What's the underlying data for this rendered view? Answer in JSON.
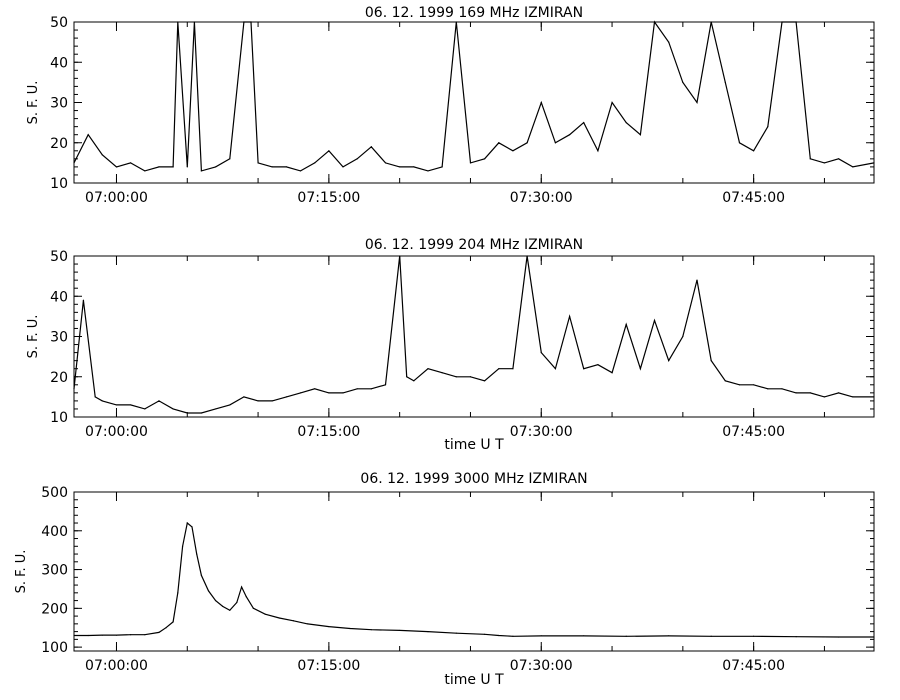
{
  "chart_data": [
    {
      "type": "line",
      "title": "06.  12.  1999    169 MHz    IZMIRAN",
      "ylabel": "S. F. U.",
      "xlabel": "",
      "ylim": [
        10,
        50
      ],
      "yticks": [
        10,
        20,
        30,
        40,
        50
      ],
      "xlim": [
        "06:57:00",
        "07:53:30"
      ],
      "xticks": [
        "07:00:00",
        "07:15:00",
        "07:30:00",
        "07:45:00"
      ],
      "series": [
        {
          "values": [
            [
              "06:57:00",
              15
            ],
            [
              "06:58:00",
              22
            ],
            [
              "06:59:00",
              17
            ],
            [
              "07:00:00",
              14
            ],
            [
              "07:01:00",
              15
            ],
            [
              "07:02:00",
              13
            ],
            [
              "07:03:00",
              14
            ],
            [
              "07:04:00",
              14
            ],
            [
              "07:04:20",
              50
            ],
            [
              "07:05:00",
              14
            ],
            [
              "07:05:30",
              50
            ],
            [
              "07:06:00",
              13
            ],
            [
              "07:07:00",
              14
            ],
            [
              "07:08:00",
              16
            ],
            [
              "07:09:00",
              50
            ],
            [
              "07:09:30",
              50
            ],
            [
              "07:10:00",
              15
            ],
            [
              "07:11:00",
              14
            ],
            [
              "07:12:00",
              14
            ],
            [
              "07:13:00",
              13
            ],
            [
              "07:14:00",
              15
            ],
            [
              "07:15:00",
              18
            ],
            [
              "07:16:00",
              14
            ],
            [
              "07:17:00",
              16
            ],
            [
              "07:18:00",
              19
            ],
            [
              "07:19:00",
              15
            ],
            [
              "07:20:00",
              14
            ],
            [
              "07:21:00",
              14
            ],
            [
              "07:22:00",
              13
            ],
            [
              "07:23:00",
              14
            ],
            [
              "07:24:00",
              50
            ],
            [
              "07:25:00",
              15
            ],
            [
              "07:26:00",
              16
            ],
            [
              "07:27:00",
              20
            ],
            [
              "07:28:00",
              18
            ],
            [
              "07:29:00",
              20
            ],
            [
              "07:30:00",
              30
            ],
            [
              "07:31:00",
              20
            ],
            [
              "07:32:00",
              22
            ],
            [
              "07:33:00",
              25
            ],
            [
              "07:34:00",
              18
            ],
            [
              "07:35:00",
              30
            ],
            [
              "07:36:00",
              25
            ],
            [
              "07:37:00",
              22
            ],
            [
              "07:38:00",
              50
            ],
            [
              "07:39:00",
              45
            ],
            [
              "07:40:00",
              35
            ],
            [
              "07:41:00",
              30
            ],
            [
              "07:42:00",
              50
            ],
            [
              "07:43:00",
              35
            ],
            [
              "07:44:00",
              20
            ],
            [
              "07:45:00",
              18
            ],
            [
              "07:46:00",
              24
            ],
            [
              "07:47:00",
              50
            ],
            [
              "07:48:00",
              50
            ],
            [
              "07:49:00",
              16
            ],
            [
              "07:50:00",
              15
            ],
            [
              "07:51:00",
              16
            ],
            [
              "07:52:00",
              14
            ],
            [
              "07:53:30",
              15
            ]
          ]
        }
      ]
    },
    {
      "type": "line",
      "title": "06.  12.  1999    204 MHz    IZMIRAN",
      "ylabel": "S. F. U.",
      "xlabel": "time   U T",
      "ylim": [
        10,
        50
      ],
      "yticks": [
        10,
        20,
        30,
        40,
        50
      ],
      "xlim": [
        "06:57:00",
        "07:53:30"
      ],
      "xticks": [
        "07:00:00",
        "07:15:00",
        "07:30:00",
        "07:45:00"
      ],
      "series": [
        {
          "values": [
            [
              "06:57:00",
              17
            ],
            [
              "06:57:40",
              39
            ],
            [
              "06:58:30",
              15
            ],
            [
              "06:59:00",
              14
            ],
            [
              "07:00:00",
              13
            ],
            [
              "07:01:00",
              13
            ],
            [
              "07:02:00",
              12
            ],
            [
              "07:03:00",
              14
            ],
            [
              "07:04:00",
              12
            ],
            [
              "07:05:00",
              11
            ],
            [
              "07:06:00",
              11
            ],
            [
              "07:07:00",
              12
            ],
            [
              "07:08:00",
              13
            ],
            [
              "07:09:00",
              15
            ],
            [
              "07:10:00",
              14
            ],
            [
              "07:11:00",
              14
            ],
            [
              "07:12:00",
              15
            ],
            [
              "07:13:00",
              16
            ],
            [
              "07:14:00",
              17
            ],
            [
              "07:15:00",
              16
            ],
            [
              "07:16:00",
              16
            ],
            [
              "07:17:00",
              17
            ],
            [
              "07:18:00",
              17
            ],
            [
              "07:19:00",
              18
            ],
            [
              "07:20:00",
              50
            ],
            [
              "07:20:30",
              20
            ],
            [
              "07:21:00",
              19
            ],
            [
              "07:22:00",
              22
            ],
            [
              "07:23:00",
              21
            ],
            [
              "07:24:00",
              20
            ],
            [
              "07:25:00",
              20
            ],
            [
              "07:26:00",
              19
            ],
            [
              "07:27:00",
              22
            ],
            [
              "07:28:00",
              22
            ],
            [
              "07:29:00",
              50
            ],
            [
              "07:30:00",
              26
            ],
            [
              "07:31:00",
              22
            ],
            [
              "07:32:00",
              35
            ],
            [
              "07:33:00",
              22
            ],
            [
              "07:34:00",
              23
            ],
            [
              "07:35:00",
              21
            ],
            [
              "07:36:00",
              33
            ],
            [
              "07:37:00",
              22
            ],
            [
              "07:38:00",
              34
            ],
            [
              "07:39:00",
              24
            ],
            [
              "07:40:00",
              30
            ],
            [
              "07:41:00",
              44
            ],
            [
              "07:42:00",
              24
            ],
            [
              "07:43:00",
              19
            ],
            [
              "07:44:00",
              18
            ],
            [
              "07:45:00",
              18
            ],
            [
              "07:46:00",
              17
            ],
            [
              "07:47:00",
              17
            ],
            [
              "07:48:00",
              16
            ],
            [
              "07:49:00",
              16
            ],
            [
              "07:50:00",
              15
            ],
            [
              "07:51:00",
              16
            ],
            [
              "07:52:00",
              15
            ],
            [
              "07:53:30",
              15
            ]
          ]
        }
      ]
    },
    {
      "type": "line",
      "title": "06.  12.  1999    3000 MHz    IZMIRAN",
      "ylabel": "S. F. U.",
      "xlabel": "time   U T",
      "ylim": [
        90,
        500
      ],
      "yticks": [
        100,
        200,
        300,
        400,
        500
      ],
      "xlim": [
        "06:57:00",
        "07:53:30"
      ],
      "xticks": [
        "07:00:00",
        "07:15:00",
        "07:30:00",
        "07:45:00"
      ],
      "series": [
        {
          "values": [
            [
              "06:57:00",
              130
            ],
            [
              "06:58:00",
              130
            ],
            [
              "06:59:00",
              131
            ],
            [
              "07:00:00",
              131
            ],
            [
              "07:01:00",
              132
            ],
            [
              "07:02:00",
              132
            ],
            [
              "07:03:00",
              138
            ],
            [
              "07:03:30",
              150
            ],
            [
              "07:04:00",
              165
            ],
            [
              "07:04:20",
              240
            ],
            [
              "07:04:40",
              360
            ],
            [
              "07:05:00",
              420
            ],
            [
              "07:05:20",
              410
            ],
            [
              "07:05:40",
              340
            ],
            [
              "07:06:00",
              285
            ],
            [
              "07:06:30",
              245
            ],
            [
              "07:07:00",
              220
            ],
            [
              "07:07:30",
              205
            ],
            [
              "07:08:00",
              195
            ],
            [
              "07:08:30",
              215
            ],
            [
              "07:08:50",
              255
            ],
            [
              "07:09:10",
              230
            ],
            [
              "07:09:40",
              200
            ],
            [
              "07:10:30",
              185
            ],
            [
              "07:11:30",
              175
            ],
            [
              "07:12:30",
              168
            ],
            [
              "07:13:30",
              160
            ],
            [
              "07:15:00",
              153
            ],
            [
              "07:16:30",
              148
            ],
            [
              "07:18:00",
              145
            ],
            [
              "07:20:00",
              143
            ],
            [
              "07:22:00",
              140
            ],
            [
              "07:24:00",
              136
            ],
            [
              "07:26:00",
              133
            ],
            [
              "07:27:00",
              130
            ],
            [
              "07:28:00",
              128
            ],
            [
              "07:30:00",
              129
            ],
            [
              "07:33:00",
              129
            ],
            [
              "07:36:00",
              128
            ],
            [
              "07:39:00",
              129
            ],
            [
              "07:42:00",
              128
            ],
            [
              "07:45:00",
              128
            ],
            [
              "07:48:00",
              127
            ],
            [
              "07:51:00",
              126
            ],
            [
              "07:53:30",
              126
            ]
          ]
        }
      ]
    }
  ]
}
